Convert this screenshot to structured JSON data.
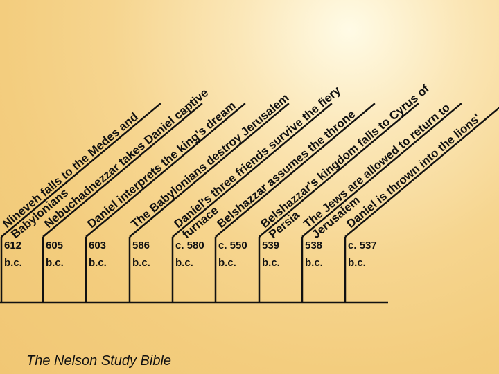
{
  "timeline": {
    "columns": [
      {
        "date": "612",
        "era": "b.c.",
        "events": [
          "Nineveh falls to the Medes and",
          "Babylonians"
        ]
      },
      {
        "date": "605",
        "era": "b.c.",
        "events": [
          "Nebuchadnezzar takes Daniel captive"
        ]
      },
      {
        "date": "603",
        "era": "b.c.",
        "events": [
          "Daniel interprets the king's dream"
        ]
      },
      {
        "date": "586",
        "era": "b.c.",
        "events": [
          "The Babylonians destroy Jerusalem"
        ]
      },
      {
        "date": "c. 580",
        "era": "b.c.",
        "events": [
          "Daniel's three friends survive the fiery",
          "furnace"
        ]
      },
      {
        "date": "c. 550",
        "era": "b.c.",
        "events": [
          "Belshazzar assumes the throne"
        ]
      },
      {
        "date": "539",
        "era": "b.c.",
        "events": [
          "Belshazzar's kingdom falls to Cyrus of",
          "Persia"
        ]
      },
      {
        "date": "538",
        "era": "b.c.",
        "events": [
          "The Jews are allowed to return to",
          "Jerusalem"
        ]
      },
      {
        "date": "c. 537",
        "era": "b.c.",
        "events": [
          "Daniel is thrown into the lions'"
        ]
      }
    ]
  },
  "caption": "The Nelson Study Bible"
}
